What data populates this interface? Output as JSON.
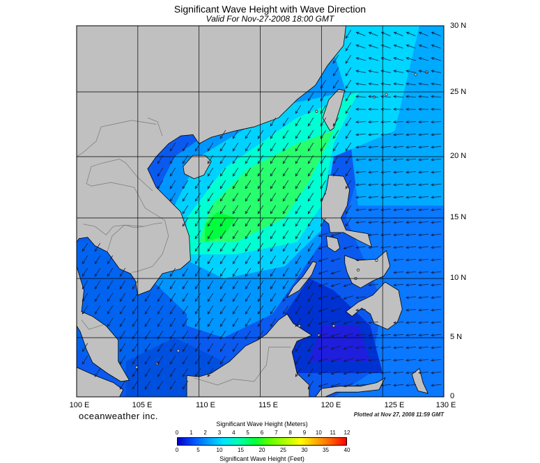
{
  "header": {
    "title": "Significant Wave Height with Wave Direction",
    "subtitle": "Valid For Nov-27-2008 18:00 GMT"
  },
  "map": {
    "lat_labels": [
      "30 N",
      "25 N",
      "20 N",
      "15 N",
      "10 N",
      "5 N",
      "0"
    ],
    "lon_labels": [
      "100 E",
      "105 E",
      "110 E",
      "115 E",
      "120 E",
      "125 E",
      "130 E"
    ],
    "lat_range": [
      0,
      30
    ],
    "lon_range": [
      100,
      130
    ],
    "grid_interval_degrees": 5,
    "land_color": "#c0c0c0",
    "grid_color": "#000000"
  },
  "footer": {
    "brand": "oceanweather inc.",
    "plotted": "Plotted at Nov 27, 2008 11:59 GMT"
  },
  "colorbar": {
    "title_meters": "Significant Wave Height (Meters)",
    "title_feet": "Significant Wave Height (Feet)",
    "meters_labels": [
      "0",
      "1",
      "2",
      "3",
      "4",
      "5",
      "6",
      "7",
      "8",
      "9",
      "10",
      "11",
      "12"
    ],
    "feet_labels": [
      "0",
      "5",
      "10",
      "15",
      "20",
      "25",
      "30",
      "35",
      "40"
    ],
    "colors": [
      "#0000c8",
      "#0050ff",
      "#00a0ff",
      "#00e6ff",
      "#00ffb0",
      "#00ff40",
      "#60ff00",
      "#b0ff00",
      "#ffff00",
      "#ffb000",
      "#ff6000",
      "#ff0000"
    ]
  }
}
